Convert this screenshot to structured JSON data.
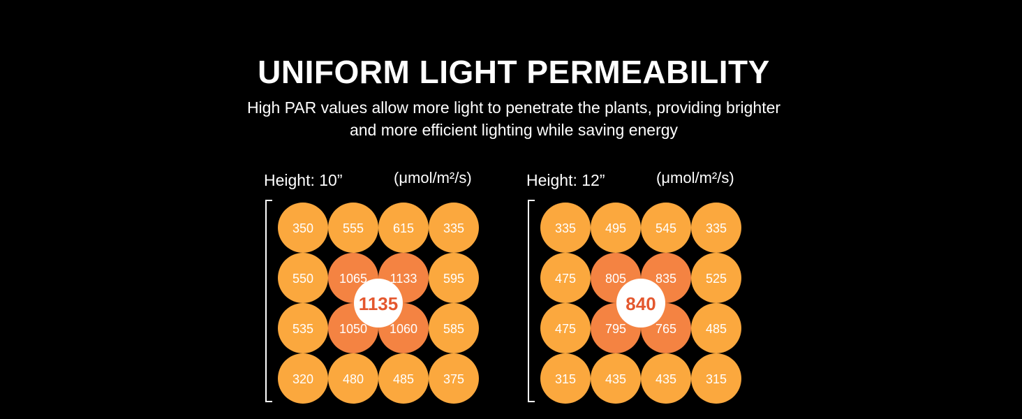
{
  "header": {
    "title": "UNIFORM LIGHT PERMEABILITY",
    "subtitle_line1": "High PAR values allow more light to penetrate the plants, providing brighter",
    "subtitle_line2": "and more efficient lighting while saving energy"
  },
  "colors": {
    "background": "#000000",
    "outer_cell": "#FBA83E",
    "inner_cell": "#F48342",
    "peak_circle": "#FFFFFF",
    "peak_text": "#E4572E",
    "text": "#FFFFFF"
  },
  "chart_data": [
    {
      "type": "heatmap",
      "title": "Height: 10”",
      "unit": "(μmol/m²/s)",
      "rows": 4,
      "cols": 4,
      "values": [
        [
          "350",
          "555",
          "615",
          "335"
        ],
        [
          "550",
          "1065",
          "1133",
          "595"
        ],
        [
          "535",
          "1050",
          "1060",
          "585"
        ],
        [
          "320",
          "480",
          "485",
          "375"
        ]
      ],
      "peak": "1135"
    },
    {
      "type": "heatmap",
      "title": "Height: 12”",
      "unit": "(μmol/m²/s)",
      "rows": 4,
      "cols": 4,
      "values": [
        [
          "335",
          "495",
          "545",
          "335"
        ],
        [
          "475",
          "805",
          "835",
          "525"
        ],
        [
          "475",
          "795",
          "765",
          "485"
        ],
        [
          "315",
          "435",
          "435",
          "315"
        ]
      ],
      "peak": "840"
    }
  ]
}
